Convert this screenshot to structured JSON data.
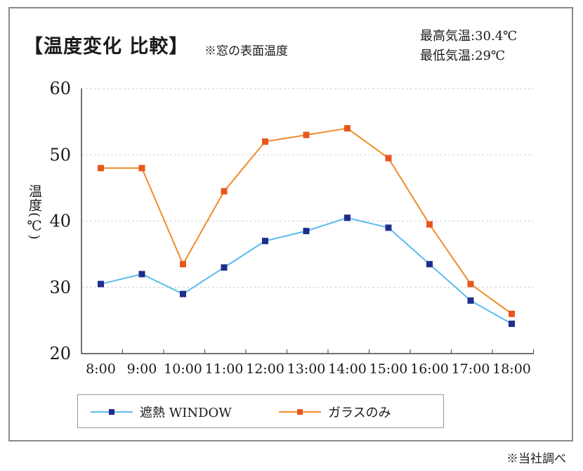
{
  "header": {
    "title": "【温度変化 比較】",
    "subtitle": "※窓の表面温度",
    "max_temp": "最高気温:30.4℃",
    "min_temp": "最低気温:29℃"
  },
  "footnote": "※当社調べ",
  "colors": {
    "window_series": "#5bbcf0",
    "window_marker": "#1f2d8c",
    "glass_series": "#f08c28",
    "glass_marker": "#e8561e",
    "frame": "#8a8a8a",
    "grid": "#cfcfcf"
  },
  "chart_data": {
    "type": "line",
    "title": "【温度変化 比較】",
    "subtitle": "※窓の表面温度",
    "xlabel": "",
    "ylabel": "温度(℃)",
    "categories": [
      "8:00",
      "9:00",
      "10:00",
      "11:00",
      "12:00",
      "13:00",
      "14:00",
      "15:00",
      "16:00",
      "17:00",
      "18:00"
    ],
    "yticks": [
      "20",
      "30",
      "40",
      "50",
      "60"
    ],
    "ylim": [
      20,
      60
    ],
    "grid": "horizontal dashed",
    "legend": "bottom",
    "series": [
      {
        "name": "遮熱 WINDOW",
        "values": [
          30.5,
          32,
          29,
          33,
          37,
          38.5,
          40.5,
          39,
          33.5,
          28,
          24.5
        ]
      },
      {
        "name": "ガラスのみ",
        "values": [
          48,
          48,
          33.5,
          44.5,
          52,
          53,
          54,
          49.5,
          39.5,
          30.5,
          26
        ]
      }
    ]
  }
}
